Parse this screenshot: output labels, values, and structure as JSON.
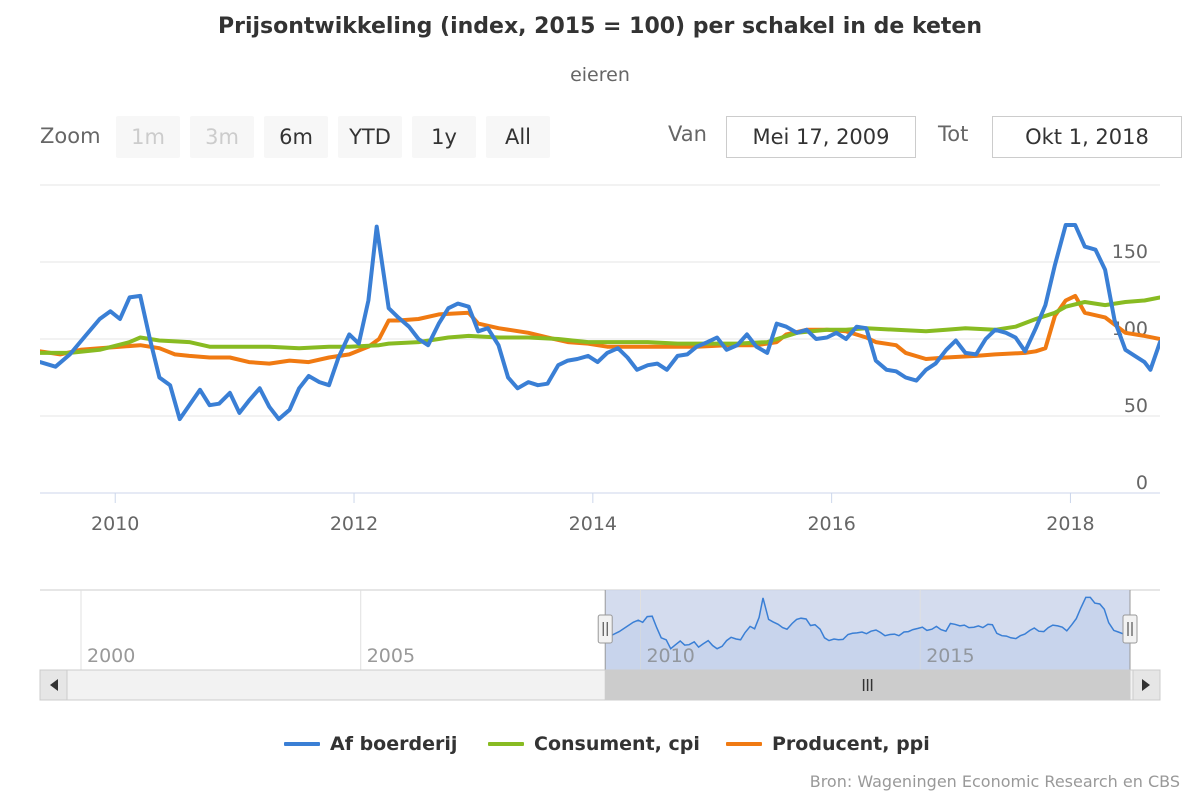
{
  "title": "Prijsontwikkeling (index, 2015 = 100) per schakel in de keten",
  "subtitle": "eieren",
  "rangeSelector": {
    "zoom_label": "Zoom",
    "buttons": [
      {
        "label": "1m",
        "enabled": false
      },
      {
        "label": "3m",
        "enabled": false
      },
      {
        "label": "6m",
        "enabled": true
      },
      {
        "label": "YTD",
        "enabled": true
      },
      {
        "label": "1y",
        "enabled": true
      },
      {
        "label": "All",
        "enabled": true
      }
    ],
    "from_label": "Van",
    "from_value": "Mei 17, 2009",
    "to_label": "Tot",
    "to_value": "Okt 1, 2018"
  },
  "credits": "Bron: Wageningen Economic Research en CBS",
  "colors": {
    "Af boerderij": "#3a7fd5",
    "Consument, cpi": "#88bb22",
    "Producent, ppi": "#f07a12",
    "grid": "#e6e6e6",
    "navigator_mask": "#ccd6eb"
  },
  "chart_data": {
    "type": "line",
    "title": "Prijsontwikkeling (index, 2015 = 100) per schakel in de keten",
    "subtitle": "eieren",
    "y_ticks": [
      0,
      50,
      100,
      150
    ],
    "ylim": [
      0,
      200
    ],
    "x_ticks": [
      2010,
      2012,
      2014,
      2016,
      2018
    ],
    "xlim": [
      2009.37,
      2018.75
    ],
    "grid": true,
    "legend_position": "bottom",
    "series": [
      {
        "name": "Af boerderij",
        "points": [
          [
            2009.37,
            85
          ],
          [
            2009.5,
            82
          ],
          [
            2009.62,
            90
          ],
          [
            2009.75,
            102
          ],
          [
            2009.87,
            113
          ],
          [
            2009.96,
            118
          ],
          [
            2010.04,
            113
          ],
          [
            2010.12,
            127
          ],
          [
            2010.21,
            128
          ],
          [
            2010.29,
            100
          ],
          [
            2010.37,
            75
          ],
          [
            2010.46,
            70
          ],
          [
            2010.54,
            48
          ],
          [
            2010.62,
            57
          ],
          [
            2010.71,
            67
          ],
          [
            2010.79,
            57
          ],
          [
            2010.87,
            58
          ],
          [
            2010.96,
            65
          ],
          [
            2011.04,
            52
          ],
          [
            2011.12,
            60
          ],
          [
            2011.21,
            68
          ],
          [
            2011.29,
            56
          ],
          [
            2011.37,
            48
          ],
          [
            2011.46,
            54
          ],
          [
            2011.54,
            68
          ],
          [
            2011.62,
            76
          ],
          [
            2011.71,
            72
          ],
          [
            2011.79,
            70
          ],
          [
            2011.87,
            88
          ],
          [
            2011.96,
            103
          ],
          [
            2012.04,
            97
          ],
          [
            2012.12,
            125
          ],
          [
            2012.19,
            173
          ],
          [
            2012.29,
            120
          ],
          [
            2012.37,
            114
          ],
          [
            2012.46,
            108
          ],
          [
            2012.54,
            100
          ],
          [
            2012.62,
            96
          ],
          [
            2012.71,
            110
          ],
          [
            2012.79,
            120
          ],
          [
            2012.87,
            123
          ],
          [
            2012.96,
            121
          ],
          [
            2013.04,
            105
          ],
          [
            2013.12,
            107
          ],
          [
            2013.21,
            96
          ],
          [
            2013.29,
            75
          ],
          [
            2013.37,
            68
          ],
          [
            2013.46,
            72
          ],
          [
            2013.54,
            70
          ],
          [
            2013.62,
            71
          ],
          [
            2013.71,
            83
          ],
          [
            2013.79,
            86
          ],
          [
            2013.87,
            87
          ],
          [
            2013.96,
            89
          ],
          [
            2014.04,
            85
          ],
          [
            2014.12,
            91
          ],
          [
            2014.21,
            94
          ],
          [
            2014.29,
            88
          ],
          [
            2014.37,
            80
          ],
          [
            2014.46,
            83
          ],
          [
            2014.54,
            84
          ],
          [
            2014.62,
            80
          ],
          [
            2014.71,
            89
          ],
          [
            2014.79,
            90
          ],
          [
            2014.87,
            95
          ],
          [
            2014.96,
            98
          ],
          [
            2015.04,
            101
          ],
          [
            2015.12,
            93
          ],
          [
            2015.21,
            96
          ],
          [
            2015.29,
            103
          ],
          [
            2015.37,
            95
          ],
          [
            2015.46,
            91
          ],
          [
            2015.54,
            110
          ],
          [
            2015.62,
            108
          ],
          [
            2015.71,
            104
          ],
          [
            2015.79,
            106
          ],
          [
            2015.87,
            100
          ],
          [
            2015.96,
            101
          ],
          [
            2016.04,
            104
          ],
          [
            2016.12,
            100
          ],
          [
            2016.21,
            108
          ],
          [
            2016.29,
            107
          ],
          [
            2016.37,
            86
          ],
          [
            2016.46,
            80
          ],
          [
            2016.54,
            79
          ],
          [
            2016.62,
            75
          ],
          [
            2016.71,
            73
          ],
          [
            2016.79,
            80
          ],
          [
            2016.87,
            84
          ],
          [
            2016.96,
            93
          ],
          [
            2017.04,
            99
          ],
          [
            2017.12,
            91
          ],
          [
            2017.21,
            90
          ],
          [
            2017.29,
            100
          ],
          [
            2017.37,
            106
          ],
          [
            2017.46,
            104
          ],
          [
            2017.54,
            101
          ],
          [
            2017.62,
            92
          ],
          [
            2017.71,
            107
          ],
          [
            2017.79,
            122
          ],
          [
            2017.87,
            148
          ],
          [
            2017.96,
            174
          ],
          [
            2018.04,
            174
          ],
          [
            2018.12,
            160
          ],
          [
            2018.21,
            158
          ],
          [
            2018.29,
            145
          ],
          [
            2018.37,
            112
          ],
          [
            2018.46,
            93
          ],
          [
            2018.54,
            89
          ],
          [
            2018.62,
            85
          ],
          [
            2018.67,
            80
          ],
          [
            2018.75,
            98
          ]
        ]
      },
      {
        "name": "Consument, cpi",
        "points": [
          [
            2009.37,
            91
          ],
          [
            2009.62,
            91
          ],
          [
            2009.87,
            93
          ],
          [
            2010.12,
            98
          ],
          [
            2010.21,
            101
          ],
          [
            2010.37,
            99
          ],
          [
            2010.62,
            98
          ],
          [
            2010.79,
            95
          ],
          [
            2011.04,
            95
          ],
          [
            2011.29,
            95
          ],
          [
            2011.54,
            94
          ],
          [
            2011.79,
            95
          ],
          [
            2011.96,
            95
          ],
          [
            2012.21,
            96
          ],
          [
            2012.29,
            97
          ],
          [
            2012.54,
            98
          ],
          [
            2012.79,
            101
          ],
          [
            2012.96,
            102
          ],
          [
            2013.21,
            101
          ],
          [
            2013.46,
            101
          ],
          [
            2013.71,
            100
          ],
          [
            2013.96,
            98
          ],
          [
            2014.21,
            98
          ],
          [
            2014.46,
            98
          ],
          [
            2014.71,
            97
          ],
          [
            2014.96,
            97
          ],
          [
            2015.21,
            97
          ],
          [
            2015.46,
            98
          ],
          [
            2015.71,
            104
          ],
          [
            2015.96,
            106
          ],
          [
            2016.12,
            106
          ],
          [
            2016.29,
            107
          ],
          [
            2016.54,
            106
          ],
          [
            2016.79,
            105
          ],
          [
            2016.96,
            106
          ],
          [
            2017.12,
            107
          ],
          [
            2017.37,
            106
          ],
          [
            2017.54,
            108
          ],
          [
            2017.71,
            113
          ],
          [
            2017.87,
            117
          ],
          [
            2017.96,
            121
          ],
          [
            2018.12,
            124
          ],
          [
            2018.29,
            122
          ],
          [
            2018.46,
            124
          ],
          [
            2018.62,
            125
          ],
          [
            2018.75,
            127
          ]
        ]
      },
      {
        "name": "Producent, ppi",
        "points": [
          [
            2009.37,
            92
          ],
          [
            2009.54,
            90
          ],
          [
            2009.71,
            93
          ],
          [
            2009.87,
            94
          ],
          [
            2010.04,
            95
          ],
          [
            2010.21,
            96
          ],
          [
            2010.37,
            94
          ],
          [
            2010.5,
            90
          ],
          [
            2010.62,
            89
          ],
          [
            2010.79,
            88
          ],
          [
            2010.96,
            88
          ],
          [
            2011.12,
            85
          ],
          [
            2011.29,
            84
          ],
          [
            2011.46,
            86
          ],
          [
            2011.62,
            85
          ],
          [
            2011.79,
            88
          ],
          [
            2011.96,
            90
          ],
          [
            2012.12,
            95
          ],
          [
            2012.21,
            100
          ],
          [
            2012.29,
            112
          ],
          [
            2012.37,
            112
          ],
          [
            2012.54,
            113
          ],
          [
            2012.71,
            116
          ],
          [
            2012.96,
            117
          ],
          [
            2013.04,
            110
          ],
          [
            2013.21,
            107
          ],
          [
            2013.46,
            104
          ],
          [
            2013.62,
            101
          ],
          [
            2013.79,
            98
          ],
          [
            2013.96,
            97
          ],
          [
            2014.12,
            95
          ],
          [
            2014.37,
            95
          ],
          [
            2014.62,
            95
          ],
          [
            2014.87,
            95
          ],
          [
            2015.12,
            96
          ],
          [
            2015.37,
            96
          ],
          [
            2015.54,
            98
          ],
          [
            2015.62,
            103
          ],
          [
            2015.79,
            106
          ],
          [
            2015.96,
            106
          ],
          [
            2016.12,
            105
          ],
          [
            2016.29,
            101
          ],
          [
            2016.37,
            98
          ],
          [
            2016.54,
            96
          ],
          [
            2016.62,
            91
          ],
          [
            2016.79,
            87
          ],
          [
            2016.96,
            88
          ],
          [
            2017.21,
            89
          ],
          [
            2017.37,
            90
          ],
          [
            2017.62,
            91
          ],
          [
            2017.71,
            92
          ],
          [
            2017.79,
            94
          ],
          [
            2017.87,
            115
          ],
          [
            2017.96,
            125
          ],
          [
            2018.04,
            128
          ],
          [
            2018.12,
            117
          ],
          [
            2018.29,
            114
          ],
          [
            2018.46,
            104
          ],
          [
            2018.62,
            102
          ],
          [
            2018.75,
            100
          ]
        ]
      }
    ],
    "navigator": {
      "x_ticks": [
        2000,
        2005,
        2010,
        2015
      ],
      "xlim": [
        1999.75,
        2018.75
      ],
      "selected_range": [
        2009.37,
        2018.75
      ]
    }
  }
}
